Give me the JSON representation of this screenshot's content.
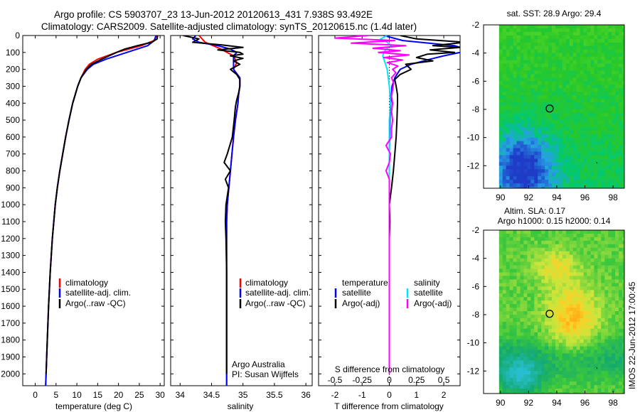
{
  "title": {
    "line1": "Argo profile: CS 5903707_23 13-Jun-2012 20120613_431 7.938S 93.492E",
    "line2": "Climatology: CARS2009. Satellite-adjusted climatology: synTS_20120615.nc (1.4d later)"
  },
  "side_stamp": "IMOS 22-Jun-2012 17:00:45",
  "colors": {
    "climatology": "#ff0000",
    "satellite": "#0000ff",
    "argo": "#000000",
    "s_satellite": "#00e5ff",
    "s_argo": "#ff00ff"
  },
  "chart_data": [
    {
      "type": "line",
      "xlabel": "temperature (deg C)",
      "ylabel": "",
      "xlim": [
        -3,
        31
      ],
      "ylim": [
        2070,
        0
      ],
      "xticks": [
        0,
        5,
        10,
        15,
        20,
        25,
        30
      ],
      "yticks": [
        0,
        100,
        200,
        300,
        400,
        500,
        600,
        700,
        800,
        900,
        1000,
        1100,
        1200,
        1300,
        1400,
        1500,
        1600,
        1700,
        1800,
        1900,
        2000
      ],
      "legend": [
        "climatology",
        "satellite-adj. clim.",
        "Argo(..raw -QC)"
      ],
      "series": [
        {
          "name": "climatology",
          "depth": [
            0,
            30,
            60,
            100,
            140,
            170,
            200,
            250,
            300,
            400,
            500,
            600,
            700,
            800,
            900,
            1000,
            1200,
            1400,
            1600,
            1800,
            2000,
            2070
          ],
          "values": [
            29.2,
            28.5,
            25.5,
            19.5,
            15.0,
            13.0,
            12.0,
            11.0,
            10.2,
            9.0,
            8.1,
            7.3,
            6.6,
            5.9,
            5.3,
            4.8,
            4.1,
            3.6,
            3.2,
            2.9,
            2.6,
            2.5
          ]
        },
        {
          "name": "satellite-adj. clim.",
          "depth": [
            0,
            30,
            60,
            100,
            140,
            170,
            200,
            250,
            300,
            400,
            500,
            600,
            700,
            800,
            900,
            1000,
            1200,
            1400,
            1600,
            1800,
            2000,
            2070
          ],
          "values": [
            29.0,
            28.6,
            27.0,
            22.0,
            17.0,
            14.0,
            12.5,
            11.0,
            10.2,
            9.0,
            8.1,
            7.3,
            6.6,
            5.9,
            5.3,
            4.8,
            4.1,
            3.6,
            3.2,
            2.9,
            2.6,
            2.5
          ]
        },
        {
          "name": "Argo(..raw -QC)",
          "depth": [
            0,
            20,
            40,
            60,
            80,
            100,
            140,
            170,
            200,
            250,
            300,
            400,
            500,
            600,
            700,
            800,
            900,
            1000,
            1200,
            1400,
            1600,
            1800,
            2000
          ],
          "values": [
            29.4,
            29.3,
            28.0,
            24.5,
            21.5,
            19.5,
            16.0,
            13.5,
            12.3,
            11.0,
            10.2,
            9.0,
            8.1,
            7.3,
            6.6,
            5.9,
            5.3,
            4.8,
            4.1,
            3.6,
            3.2,
            2.9,
            2.6
          ]
        }
      ]
    },
    {
      "type": "line",
      "xlabel": "salinity",
      "ylabel": "",
      "xlim": [
        33.85,
        36.1
      ],
      "ylim": [
        2070,
        0
      ],
      "xticks": [
        34,
        34.5,
        35,
        35.5,
        36
      ],
      "legend": [
        "climatology",
        "satellite-adj. clim.",
        "Argo(..raw -QC)"
      ],
      "annotation": [
        "Argo Australia",
        "PI: Susan Wijffels"
      ],
      "series": [
        {
          "name": "climatology",
          "depth": [
            0,
            40,
            80,
            120,
            160,
            200,
            250,
            300,
            350,
            400,
            500,
            600,
            800,
            1000,
            1100,
            1200,
            1400,
            1600,
            1800,
            2000,
            2070
          ],
          "values": [
            34.3,
            34.4,
            34.65,
            34.85,
            34.9,
            34.85,
            34.95,
            34.95,
            34.93,
            34.92,
            34.88,
            34.85,
            34.8,
            34.75,
            34.74,
            34.74,
            34.74,
            34.74,
            34.74,
            34.74,
            34.74
          ]
        },
        {
          "name": "satellite-adj. clim.",
          "depth": [
            0,
            20,
            40,
            60,
            80,
            100,
            120,
            160,
            200,
            250,
            300,
            350,
            400,
            500,
            600,
            800,
            1000,
            1100,
            1200,
            1400,
            1600,
            1800,
            2000,
            2070
          ],
          "values": [
            34.25,
            34.2,
            34.3,
            34.6,
            34.8,
            34.9,
            34.85,
            34.85,
            34.85,
            34.95,
            34.95,
            34.93,
            34.92,
            34.88,
            34.85,
            34.8,
            34.75,
            34.74,
            34.74,
            34.74,
            34.74,
            34.74,
            34.74,
            34.74
          ]
        },
        {
          "name": "Argo(..raw -QC)",
          "depth": [
            0,
            20,
            40,
            55,
            70,
            85,
            100,
            110,
            120,
            135,
            150,
            170,
            200,
            230,
            260,
            300,
            340,
            380,
            420,
            500,
            600,
            700,
            750,
            800,
            850,
            900,
            1000,
            1100,
            1200,
            1400,
            1600,
            1800,
            2000
          ],
          "values": [
            34.05,
            34.3,
            34.2,
            34.65,
            35.0,
            34.6,
            34.95,
            35.0,
            34.8,
            35.0,
            34.85,
            34.95,
            34.8,
            34.9,
            34.95,
            34.95,
            34.93,
            34.9,
            34.88,
            34.86,
            34.83,
            34.75,
            34.7,
            34.8,
            34.72,
            34.77,
            34.73,
            34.72,
            34.73,
            34.74,
            34.74,
            34.74,
            34.74
          ]
        }
      ]
    },
    {
      "type": "line",
      "xlabel": "T difference from climatology",
      "xlabel_top": "S difference from climatology",
      "ylabel": "",
      "xlim": [
        -2.6,
        2.6
      ],
      "ylim": [
        2070,
        0
      ],
      "xticks": [
        -2,
        -1,
        0,
        1,
        2
      ],
      "s_xticks": [
        "-0.5",
        "-0.25",
        "0",
        "0.25",
        "0.5"
      ],
      "s_xticks_at": [
        -2,
        -1,
        0,
        1,
        2
      ],
      "legend": {
        "temperature": [
          "temperature",
          "satellite",
          "Argo(-adj)"
        ],
        "salinity": [
          "salinity",
          "satellite",
          "Argo(-adj)"
        ]
      },
      "series": [
        {
          "name": "satellite",
          "group": "temperature",
          "depth": [
            0,
            30,
            60,
            80,
            100,
            120,
            140,
            170,
            200,
            250,
            300,
            400,
            500,
            700,
            900,
            1100,
            1500,
            2000
          ],
          "values": [
            -0.2,
            0.5,
            2.4,
            2.8,
            2.6,
            2.0,
            1.5,
            0.8,
            0.4,
            0.2,
            0.1,
            0.05,
            0.02,
            0.0,
            0.0,
            0.0,
            0.0,
            0.0
          ]
        },
        {
          "name": "Argo(-adj)",
          "group": "temperature",
          "depth": [
            0,
            20,
            40,
            60,
            70,
            85,
            100,
            110,
            130,
            150,
            170,
            200,
            230,
            260,
            300,
            350,
            400,
            500,
            600,
            700,
            800,
            900,
            1000,
            1100,
            1200,
            1400,
            1600,
            1800,
            2000
          ],
          "values": [
            0.4,
            1.0,
            2.8,
            1.6,
            2.6,
            1.5,
            2.4,
            1.4,
            1.0,
            1.6,
            0.6,
            0.8,
            0.4,
            0.2,
            0.25,
            0.3,
            0.3,
            0.28,
            0.25,
            0.2,
            0.15,
            0.08,
            0.0,
            0.02,
            0.0,
            0.0,
            0.0,
            0.0,
            0.0
          ]
        },
        {
          "name": "satellite",
          "group": "salinity",
          "depth": [
            0,
            20,
            40,
            60,
            80,
            100,
            120,
            140,
            160,
            200,
            250,
            300,
            400,
            500,
            600,
            700,
            800,
            900,
            1000,
            1200,
            1500,
            2000
          ],
          "values": [
            -0.02,
            -0.08,
            -0.02,
            0.02,
            -0.03,
            -0.05,
            -0.06,
            -0.05,
            -0.04,
            -0.02,
            -0.01,
            0.0,
            0.01,
            0.0,
            0.0,
            0.0,
            0.0,
            0.0,
            0.0,
            0.0,
            0.0,
            0.0
          ]
        },
        {
          "name": "Argo(-adj)",
          "group": "salinity",
          "depth": [
            0,
            15,
            30,
            45,
            60,
            75,
            90,
            100,
            115,
            130,
            145,
            160,
            180,
            200,
            220,
            250,
            280,
            320,
            360,
            400,
            450,
            500,
            550,
            600,
            650,
            700,
            750,
            800,
            850,
            900,
            1000,
            1100,
            1200,
            1400,
            1600,
            1800,
            2000
          ],
          "values": [
            -0.2,
            -0.5,
            0.05,
            -0.35,
            0.15,
            -0.15,
            0.1,
            -0.1,
            0.18,
            -0.05,
            0.12,
            -0.02,
            0.08,
            0.03,
            0.06,
            0.02,
            0.04,
            0.03,
            0.02,
            0.03,
            0.02,
            0.03,
            0.02,
            0.02,
            -0.03,
            0.01,
            0.0,
            -0.03,
            0.0,
            0.0,
            0.0,
            0.0,
            0.0,
            0.0,
            0.0,
            0.0,
            0.0
          ]
        }
      ]
    },
    {
      "type": "heatmap",
      "title": "sat. SST: 28.9 Argo: 29.4",
      "xlim": [
        88.8,
        98.8
      ],
      "ylim": [
        -13.6,
        -2
      ],
      "xticks": [
        90,
        92,
        94,
        96,
        98
      ],
      "yticks": [
        -2,
        -4,
        -6,
        -8,
        -10,
        -12
      ],
      "marker": {
        "lon": 93.492,
        "lat": -7.938
      }
    },
    {
      "type": "heatmap",
      "title_lines": [
        "Altim. SLA: 0.17",
        "Argo h1000: 0.15 h2000: 0.14"
      ],
      "xlim": [
        88.8,
        98.8
      ],
      "ylim": [
        -13.6,
        -2
      ],
      "xticks": [
        90,
        92,
        94,
        96,
        98
      ],
      "yticks": [
        -2,
        -4,
        -6,
        -8,
        -10,
        -12
      ],
      "marker": {
        "lon": 93.492,
        "lat": -7.938
      }
    }
  ]
}
